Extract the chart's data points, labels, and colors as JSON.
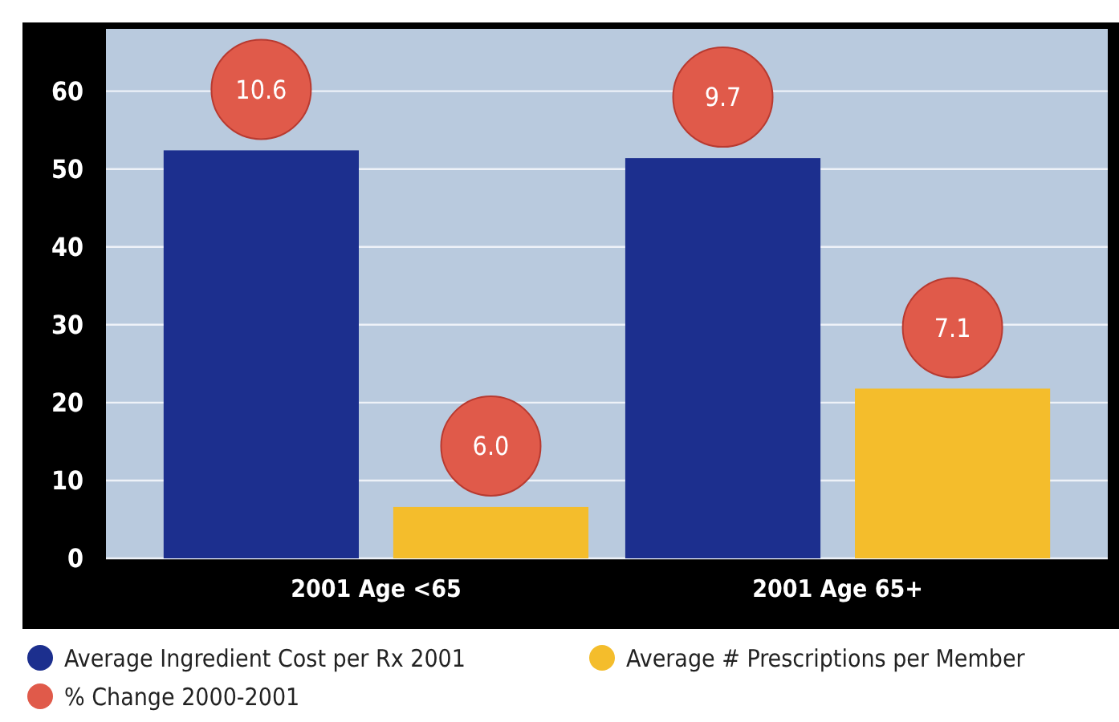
{
  "chart_data": {
    "type": "bar",
    "categories": [
      "2001 Age <65",
      "2001 Age 65+"
    ],
    "series": [
      {
        "name": "Average Ingredient Cost per Rx 2001",
        "color": "#1c2f8e",
        "values": [
          52.4,
          51.4
        ]
      },
      {
        "name": "Average # Prescriptions per Member",
        "color": "#f4bd2c",
        "values": [
          6.6,
          21.8
        ]
      }
    ],
    "ylim": [
      0,
      68
    ],
    "yticks": [
      0,
      10,
      20,
      30,
      40,
      50,
      60
    ],
    "grid": "y",
    "legend": "bottom",
    "annotations": [
      "10.6",
      "9.7",
      "6.0",
      "7.1",
      "% Change 2000-2001"
    ]
  }
}
